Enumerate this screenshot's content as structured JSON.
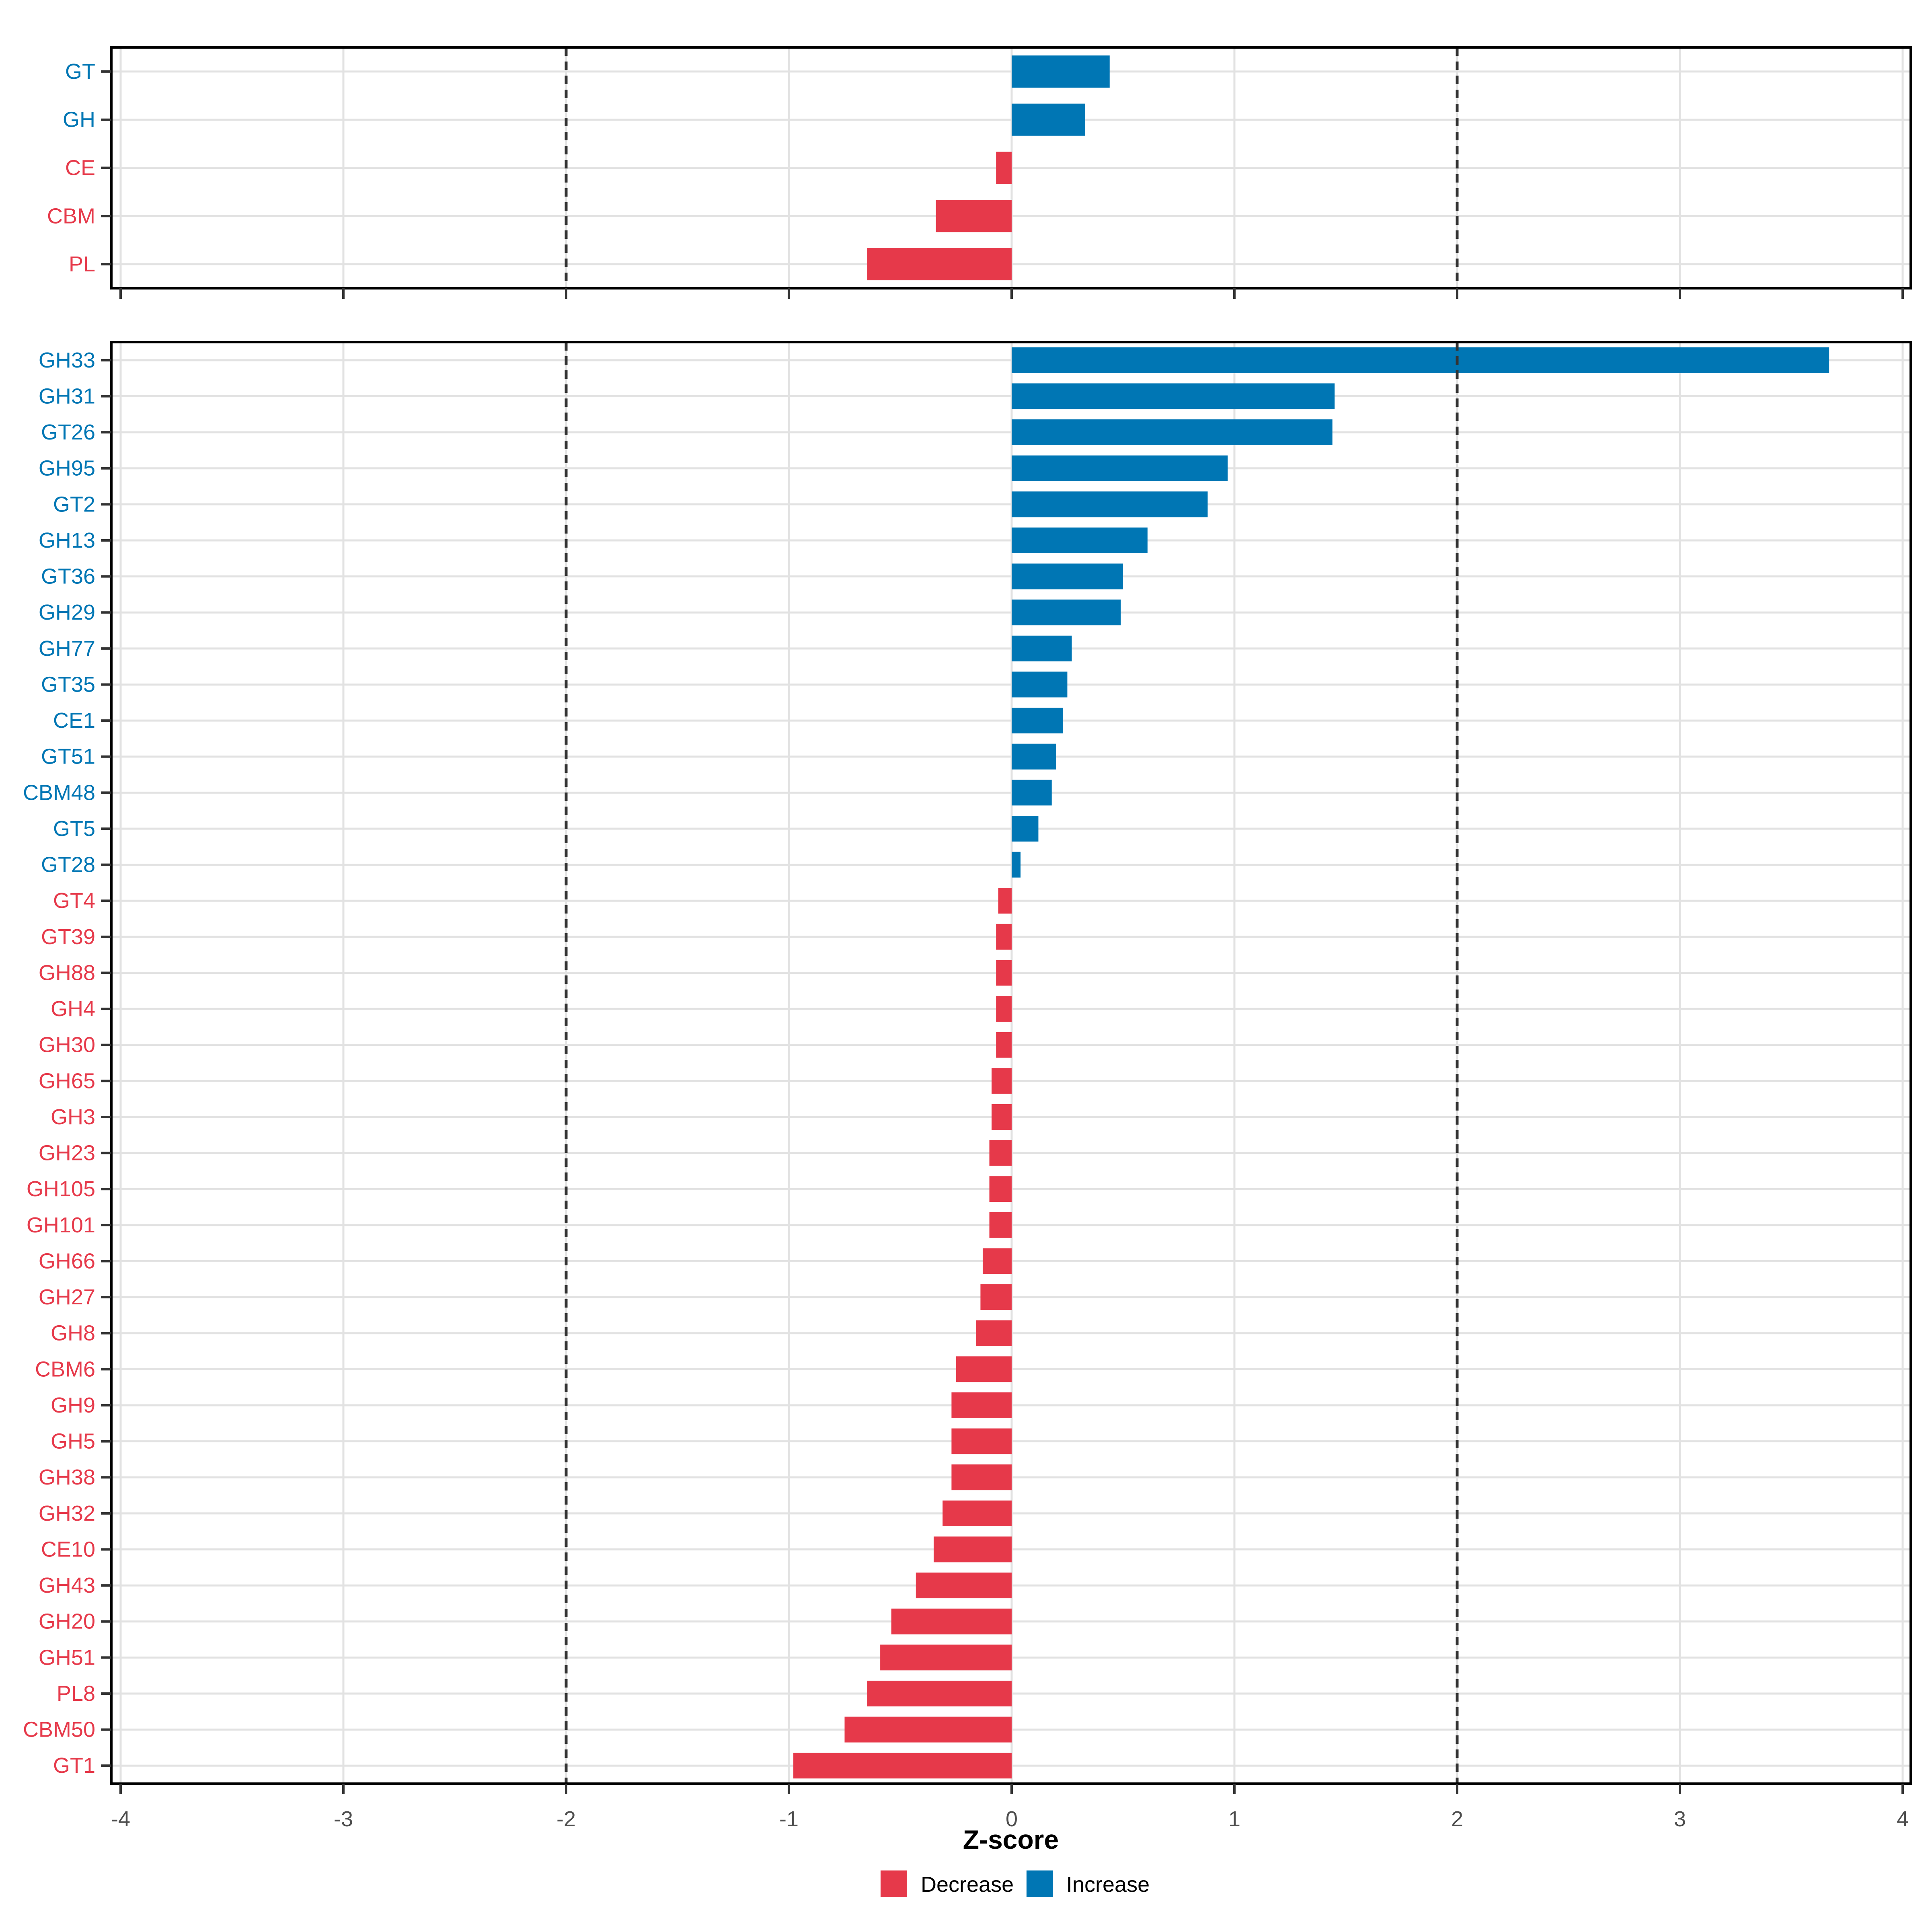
{
  "colors": {
    "increase": "#0076B4",
    "decrease": "#E6394A",
    "grid": "#E2E2E2",
    "dashed_line": "#333333",
    "axis_text": "#4D4D4D",
    "panel_border": "#000000",
    "title_text": "#000000",
    "background": "#FFFFFF"
  },
  "axis": {
    "title": "Z-score",
    "ticks": [
      -4,
      -3,
      -2,
      -1,
      0,
      1,
      2,
      3,
      4
    ],
    "xlim": [
      -4.04,
      4.04
    ],
    "dashed_at": [
      -2,
      2
    ]
  },
  "legend": {
    "items": [
      {
        "label": "Decrease",
        "color": "decrease"
      },
      {
        "label": "Increase",
        "color": "increase"
      }
    ]
  },
  "chart_data": [
    {
      "type": "bar",
      "panel": "top",
      "orientation": "horizontal",
      "xlabel": "Z-score",
      "categories": [
        "GT",
        "GH",
        "CE",
        "CBM",
        "PL"
      ],
      "values": [
        0.44,
        0.33,
        -0.07,
        -0.34,
        -0.65
      ]
    },
    {
      "type": "bar",
      "panel": "bottom",
      "orientation": "horizontal",
      "xlabel": "Z-score",
      "categories": [
        "GH33",
        "GH31",
        "GT26",
        "GH95",
        "GT2",
        "GH13",
        "GT36",
        "GH29",
        "GH77",
        "GT35",
        "CE1",
        "GT51",
        "CBM48",
        "GT5",
        "GT28",
        "GT4",
        "GT39",
        "GH88",
        "GH4",
        "GH30",
        "GH65",
        "GH3",
        "GH23",
        "GH105",
        "GH101",
        "GH66",
        "GH27",
        "GH8",
        "CBM6",
        "GH9",
        "GH5",
        "GH38",
        "GH32",
        "CE10",
        "GH43",
        "GH20",
        "GH51",
        "PL8",
        "CBM50",
        "GT1"
      ],
      "values": [
        3.67,
        1.45,
        1.44,
        0.97,
        0.88,
        0.61,
        0.5,
        0.49,
        0.27,
        0.25,
        0.23,
        0.2,
        0.18,
        0.12,
        0.04,
        -0.06,
        -0.07,
        -0.07,
        -0.07,
        -0.07,
        -0.09,
        -0.09,
        -0.1,
        -0.1,
        -0.1,
        -0.13,
        -0.14,
        -0.16,
        -0.25,
        -0.27,
        -0.27,
        -0.27,
        -0.31,
        -0.35,
        -0.43,
        -0.54,
        -0.59,
        -0.65,
        -0.75,
        -0.98
      ]
    }
  ]
}
